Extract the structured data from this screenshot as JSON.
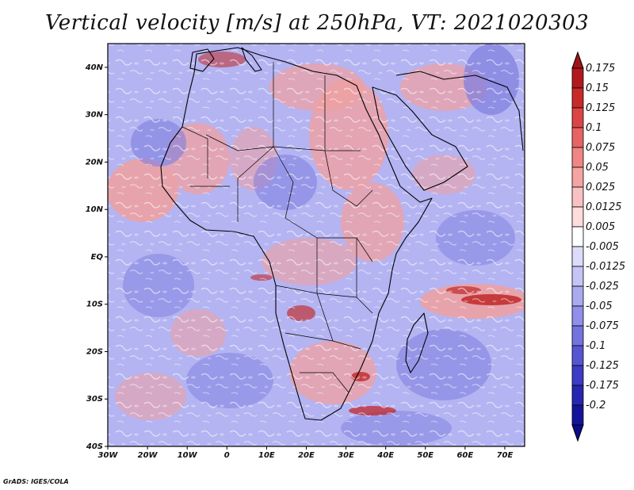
{
  "title": "Vertical velocity [m/s] at 250hPa, VT: 2021020303",
  "footer": "GrADS: IGES/COLA",
  "map": {
    "region": "Africa",
    "field": "vertical velocity",
    "lon_range": [
      -30,
      75
    ],
    "lat_range": [
      -40,
      45
    ],
    "lat_ticks": [
      {
        "value": 40,
        "label": "40N"
      },
      {
        "value": 30,
        "label": "30N"
      },
      {
        "value": 20,
        "label": "20N"
      },
      {
        "value": 10,
        "label": "10N"
      },
      {
        "value": 0,
        "label": "EQ"
      },
      {
        "value": -10,
        "label": "10S"
      },
      {
        "value": -20,
        "label": "20S"
      },
      {
        "value": -30,
        "label": "30S"
      },
      {
        "value": -40,
        "label": "40S"
      }
    ],
    "lon_ticks": [
      {
        "value": -30,
        "label": "30W"
      },
      {
        "value": -20,
        "label": "20W"
      },
      {
        "value": -10,
        "label": "10W"
      },
      {
        "value": 0,
        "label": "0"
      },
      {
        "value": 10,
        "label": "10E"
      },
      {
        "value": 20,
        "label": "20E"
      },
      {
        "value": 30,
        "label": "30E"
      },
      {
        "value": 40,
        "label": "40E"
      },
      {
        "value": 50,
        "label": "50E"
      },
      {
        "value": 60,
        "label": "60E"
      },
      {
        "value": 70,
        "label": "70E"
      }
    ]
  },
  "colorbar": {
    "levels": [
      {
        "label": "0.175",
        "color": "#b0191e"
      },
      {
        "label": "0.15",
        "color": "#c82a2a"
      },
      {
        "label": "0.125",
        "color": "#dc4545"
      },
      {
        "label": "0.1",
        "color": "#e86464"
      },
      {
        "label": "0.075",
        "color": "#f08585"
      },
      {
        "label": "0.05",
        "color": "#f5a4a4"
      },
      {
        "label": "0.025",
        "color": "#f9c2c2"
      },
      {
        "label": "0.0125",
        "color": "#fcdcdc"
      },
      {
        "label": "0.005",
        "color": "#ffffff"
      },
      {
        "label": "-0.005",
        "color": "#dcdcfa"
      },
      {
        "label": "-0.0125",
        "color": "#c4c4f5"
      },
      {
        "label": "-0.025",
        "color": "#aaaaf0"
      },
      {
        "label": "-0.05",
        "color": "#9090ea"
      },
      {
        "label": "-0.075",
        "color": "#7373e0"
      },
      {
        "label": "-0.1",
        "color": "#5656d4"
      },
      {
        "label": "-0.125",
        "color": "#3c3cc4"
      },
      {
        "label": "-0.175",
        "color": "#2626b0"
      },
      {
        "label": "-0.2",
        "color": "#14149a"
      }
    ],
    "top_color": "#a01418",
    "bottom_color": "#0c0c8a"
  }
}
